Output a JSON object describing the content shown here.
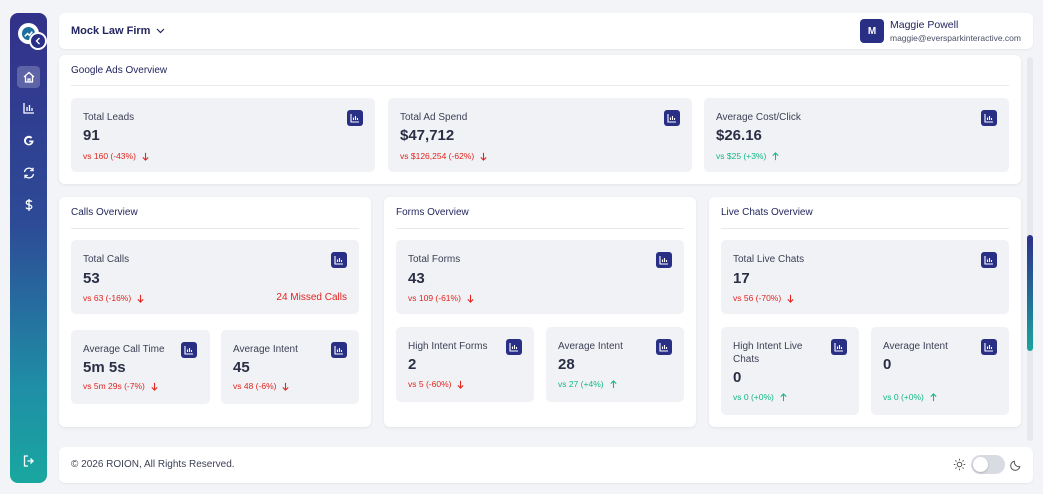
{
  "header": {
    "firm": "Mock Law Firm",
    "user_initial": "M",
    "user_name": "Maggie Powell",
    "user_email": "maggie@eversparkinteractive.com"
  },
  "sidebar": {
    "items": [
      "home-icon",
      "bar-chart-icon",
      "google-icon",
      "refresh-icon",
      "dollar-icon"
    ],
    "logout": "logout-icon"
  },
  "google_ads": {
    "title": "Google Ads Overview",
    "cards": [
      {
        "label": "Total Leads",
        "value": "91",
        "delta": "vs 160 (-43%)",
        "trend": "down"
      },
      {
        "label": "Total Ad Spend",
        "value": "$47,712",
        "delta": "vs $126,254 (-62%)",
        "trend": "down"
      },
      {
        "label": "Average Cost/Click",
        "value": "$26.16",
        "delta": "vs $25 (+3%)",
        "trend": "up"
      }
    ]
  },
  "calls": {
    "title": "Calls Overview",
    "total": {
      "label": "Total Calls",
      "value": "53",
      "delta": "vs 63 (-16%)",
      "missed": "24 Missed Calls"
    },
    "avg_time": {
      "label": "Average Call Time",
      "value": "5m 5s",
      "delta": "vs 5m 29s (-7%)"
    },
    "avg_intent": {
      "label": "Average Intent",
      "value": "45",
      "delta": "vs 48 (-6%)"
    }
  },
  "forms": {
    "title": "Forms Overview",
    "total": {
      "label": "Total Forms",
      "value": "43",
      "delta": "vs 109 (-61%)"
    },
    "high_intent": {
      "label": "High Intent Forms",
      "value": "2",
      "delta": "vs 5 (-60%)"
    },
    "avg_intent": {
      "label": "Average Intent",
      "value": "28",
      "delta": "vs 27 (+4%)"
    }
  },
  "chats": {
    "title": "Live Chats Overview",
    "total": {
      "label": "Total Live Chats",
      "value": "17",
      "delta": "vs 56 (-70%)"
    },
    "high_intent": {
      "label": "High Intent Live Chats",
      "value": "0",
      "delta": "vs 0 (+0%)"
    },
    "avg_intent": {
      "label": "Average Intent",
      "value": "0",
      "delta": "vs 0 (+0%)"
    }
  },
  "footer": {
    "copyright": "© 2026 ROION, All Rights Reserved."
  },
  "colors": {
    "brand": "#2a2f86",
    "negative": "#e0241f",
    "positive": "#12b886"
  }
}
